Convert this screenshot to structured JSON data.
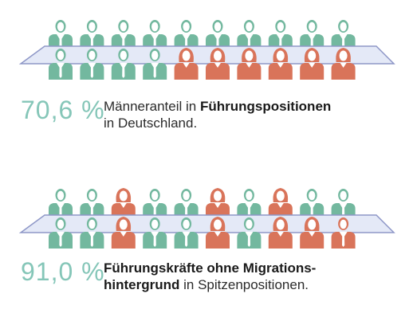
{
  "colors": {
    "men": "#73b89f",
    "women": "#d9745a",
    "table_fill": "#e4e9f7",
    "table_stroke": "#8e97c7",
    "stat_text": "#85c6b8"
  },
  "panels": [
    {
      "stat": "70,6 %",
      "desc_line1_plain": "Männeranteil in ",
      "desc_line1_bold": "Führungspositionen",
      "desc_line2_plain": "in Deutschland.",
      "row_back": [
        "m",
        "m",
        "m",
        "m",
        "m",
        "m",
        "m",
        "m",
        "m",
        "m"
      ],
      "row_front": [
        "m",
        "m",
        "m",
        "m",
        "w",
        "w",
        "w",
        "w",
        "w",
        "w"
      ]
    },
    {
      "stat": "91,0 %",
      "desc_line1_bold": "Führungskräfte ohne Migrations-",
      "desc_line2_bold": "hintergrund",
      "desc_line2_plain": " in Spitzenpositionen.",
      "row_back": [
        "m",
        "m",
        "w",
        "m",
        "m",
        "w",
        "m",
        "w",
        "m",
        "m"
      ],
      "row_front": [
        "m",
        "m",
        "w",
        "m",
        "m",
        "w",
        "m",
        "w",
        "wo",
        "mo"
      ]
    }
  ]
}
